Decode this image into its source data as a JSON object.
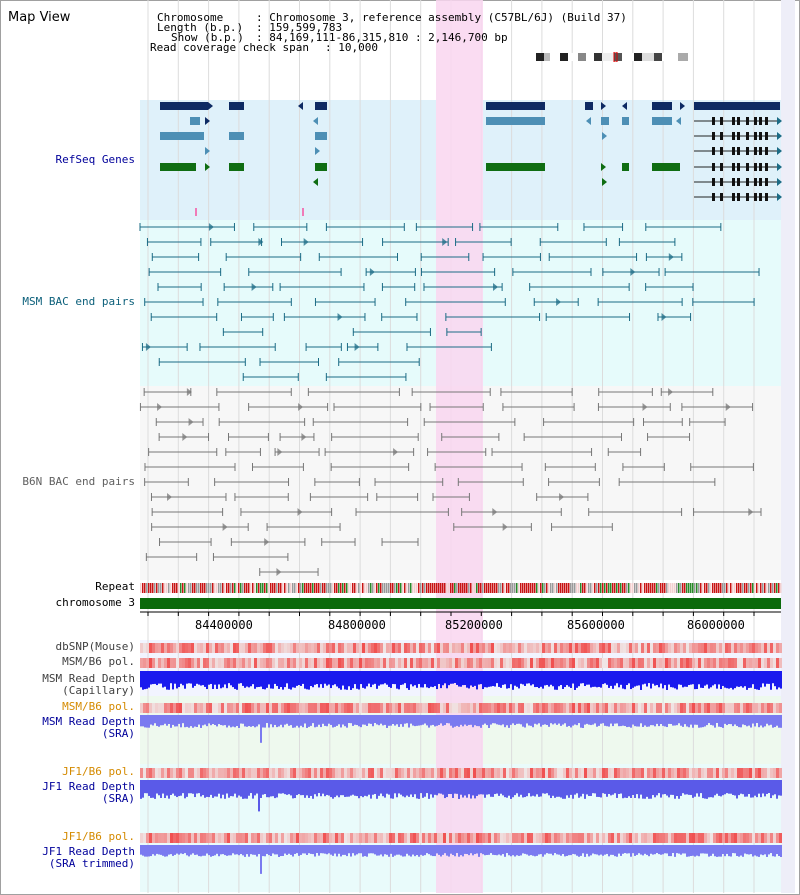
{
  "header": {
    "title": "Map View",
    "chromosome_label": "Chromosome",
    "chromosome_value": ": Chromosome 3, reference assembly (C57BL/6J) (Build 37)",
    "length_label": "Length (b.p.)",
    "length_value": ": 159,599,783",
    "show_label": "Show (b.p.)",
    "show_value": ": 84,169,111-86,315,810 : 2,146,700 bp",
    "coverage_label": "Read coverage check span",
    "coverage_value": ": 10,000"
  },
  "tracks": {
    "refseq": "RefSeq Genes",
    "msm_bac": "MSM BAC end pairs",
    "b6n_bac": "B6N BAC end pairs",
    "repeat": "Repeat",
    "chromosome": "chromosome 3",
    "dbsnp": "dbSNP(Mouse)",
    "msm_b6_pol_1": "MSM/B6 pol.",
    "msm_depth_cap_1": "MSM Read Depth",
    "msm_depth_cap_2": "(Capillary)",
    "msm_b6_pol_2": "MSM/B6 pol.",
    "msm_depth_sra_1": "MSM Read Depth",
    "msm_depth_sra_2": "(SRA)",
    "jf1_b6_pol_1": "JF1/B6 pol.",
    "jf1_depth_sra_1": "JF1 Read Depth",
    "jf1_depth_sra_2": "(SRA)",
    "jf1_b6_pol_2": "JF1/B6 pol.",
    "jf1_depth_trim_1": "JF1 Read Depth",
    "jf1_depth_trim_2": "(SRA trimmed)"
  },
  "axis": {
    "ticks": [
      "84400000",
      "84800000",
      "85200000",
      "85600000",
      "86000000"
    ]
  },
  "colors": {
    "refseq_bg": "#dff1fa",
    "msm_bg": "#e6fbfb",
    "b6n_bg": "#f7f7f7",
    "highlight": "#f9d6f0",
    "gene_dark": "#0e2a63",
    "gene_mid": "#4d8fb5",
    "gene_green": "#0f6d12",
    "msm_line": "#1b6b85",
    "b6n_line": "#777777",
    "chrom_green": "#0b6a0b",
    "depth_blue": "#1a1aee",
    "depth_light": "#7a7af0",
    "label_blue": "#00009a",
    "label_teal": "#0b5f7a",
    "label_gray": "#606060",
    "label_orange": "#d48a00"
  }
}
